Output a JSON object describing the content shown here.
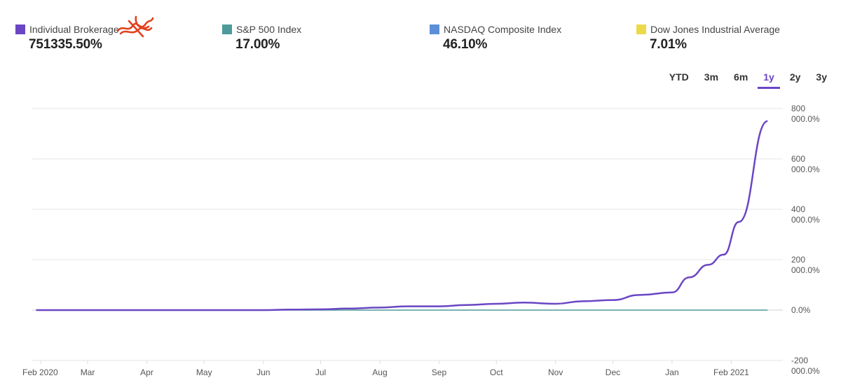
{
  "legend": [
    {
      "label": "Individual Brokerage",
      "value": "751335.50%",
      "color": "#6a46c4"
    },
    {
      "label": "S&P 500 Index",
      "value": "17.00%",
      "color": "#4f9a9a"
    },
    {
      "label": "NASDAQ Composite Index",
      "value": "46.10%",
      "color": "#5b8fd8"
    },
    {
      "label": "Dow Jones Industrial Average",
      "value": "7.01%",
      "color": "#ecd94a"
    }
  ],
  "ranges": [
    {
      "label": "YTD",
      "active": false
    },
    {
      "label": "3m",
      "active": false
    },
    {
      "label": "6m",
      "active": false
    },
    {
      "label": "1y",
      "active": true
    },
    {
      "label": "2y",
      "active": false
    },
    {
      "label": "3y",
      "active": false
    }
  ],
  "chart_data": {
    "type": "line",
    "xlabel": "",
    "ylabel": "",
    "x_ticks": [
      "Feb 2020",
      "Mar",
      "Apr",
      "May",
      "Jun",
      "Jul",
      "Aug",
      "Sep",
      "Oct",
      "Nov",
      "Dec",
      "Jan",
      "Feb 2021"
    ],
    "y_ticks": [
      {
        "value": 8000000,
        "lines": [
          "800",
          "000.0%"
        ]
      },
      {
        "value": 6000000,
        "lines": [
          "600",
          "000.0%"
        ]
      },
      {
        "value": 4000000,
        "lines": [
          "400",
          "000.0%"
        ]
      },
      {
        "value": 2000000,
        "lines": [
          "200",
          "000.0%"
        ]
      },
      {
        "value": 0,
        "lines": [
          "0.0%"
        ]
      },
      {
        "value": -2000000,
        "lines": [
          "-200",
          "000.0%"
        ]
      }
    ],
    "ylim": [
      -2000000,
      8000000
    ],
    "grid": true,
    "series": [
      {
        "name": "Individual Brokerage",
        "color": "#6a46c4",
        "points": [
          [
            "2020-02-03",
            0
          ],
          [
            "2020-03-01",
            0
          ],
          [
            "2020-04-01",
            0
          ],
          [
            "2020-05-01",
            0
          ],
          [
            "2020-06-01",
            0
          ],
          [
            "2020-06-15",
            20000
          ],
          [
            "2020-07-01",
            30000
          ],
          [
            "2020-07-15",
            60000
          ],
          [
            "2020-08-01",
            100000
          ],
          [
            "2020-08-15",
            150000
          ],
          [
            "2020-09-01",
            150000
          ],
          [
            "2020-09-15",
            200000
          ],
          [
            "2020-10-01",
            250000
          ],
          [
            "2020-10-15",
            300000
          ],
          [
            "2020-11-01",
            250000
          ],
          [
            "2020-11-15",
            350000
          ],
          [
            "2020-12-01",
            400000
          ],
          [
            "2020-12-15",
            600000
          ],
          [
            "2021-01-01",
            700000
          ],
          [
            "2021-01-10",
            1300000
          ],
          [
            "2021-01-20",
            1800000
          ],
          [
            "2021-01-28",
            2200000
          ],
          [
            "2021-02-05",
            3500000
          ],
          [
            "2021-02-20",
            7500000
          ]
        ]
      },
      {
        "name": "S&P 500 Index",
        "color": "#4f9a9a",
        "points": [
          [
            "2020-02-03",
            0
          ],
          [
            "2021-02-20",
            17
          ]
        ]
      }
    ]
  }
}
